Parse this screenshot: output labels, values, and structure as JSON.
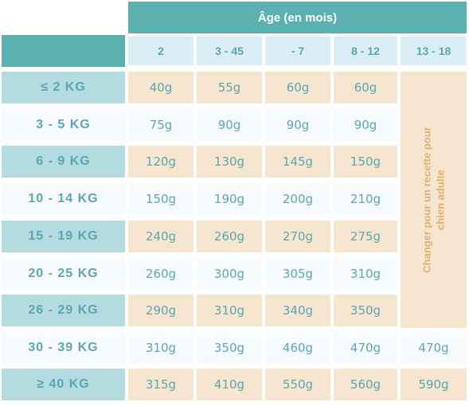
{
  "header": {
    "title": "Âge (en mois)"
  },
  "age_columns": [
    "2",
    "3 - 45",
    "- 7",
    "8 - 12",
    "13 - 18"
  ],
  "merged_note": [
    "Changer pour un recette pour",
    "chien adulte"
  ],
  "rows": [
    {
      "weight": "≤ 2 KG",
      "values": [
        "40g",
        "55g",
        "60g",
        "60g"
      ]
    },
    {
      "weight": "3 - 5 KG",
      "values": [
        "75g",
        "90g",
        "90g",
        "90g"
      ]
    },
    {
      "weight": "6 - 9 KG",
      "values": [
        "120g",
        "130g",
        "145g",
        "150g"
      ]
    },
    {
      "weight": "10 - 14 KG",
      "values": [
        "150g",
        "190g",
        "200g",
        "210g"
      ]
    },
    {
      "weight": "15 - 19 KG",
      "values": [
        "240g",
        "260g",
        "270g",
        "275g"
      ]
    },
    {
      "weight": "20 - 25 KG",
      "values": [
        "260g",
        "300g",
        "305g",
        "310g"
      ]
    },
    {
      "weight": "26 - 29 KG",
      "values": [
        "290g",
        "310g",
        "340g",
        "350g"
      ]
    },
    {
      "weight": "30 - 39 KG",
      "values": [
        "310g",
        "350g",
        "460g",
        "470g",
        "470g"
      ]
    },
    {
      "weight": "≥ 40 KG",
      "values": [
        "315g",
        "410g",
        "550g",
        "560g",
        "590g"
      ]
    }
  ],
  "colors": {
    "teal": "#5bb0b0",
    "label_shade": "#b4dce0",
    "value_shade": "#f6e6cf",
    "age_bg": "#dbeef5",
    "text": "#5aa7b4",
    "note": "#e4ad72"
  }
}
